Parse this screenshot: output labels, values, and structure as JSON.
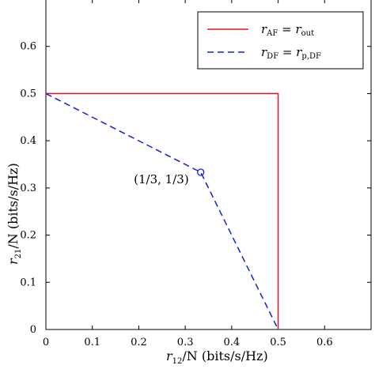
{
  "chart_data": {
    "type": "line",
    "xlabel": {
      "var": "r",
      "sub": "12",
      "rest": "/N (bits/s/Hz)"
    },
    "ylabel": {
      "var": "r",
      "sub": "21",
      "rest": "/N (bits/s/Hz)"
    },
    "xlim": [
      0,
      0.7
    ],
    "ylim": [
      0,
      0.7
    ],
    "x_ticks": [
      "0",
      "0.1",
      "0.2",
      "0.3",
      "0.4",
      "0.5",
      "0.6"
    ],
    "y_ticks": [
      "0",
      "0.1",
      "0.2",
      "0.3",
      "0.4",
      "0.5",
      "0.6"
    ],
    "grid": false,
    "legend_position": "top-right",
    "series": [
      {
        "legend": {
          "lhs": "r",
          "lhs_sub": "AF",
          "rhs": "r",
          "rhs_sub": "out"
        },
        "style": "solid",
        "color": "#e8141b",
        "x": [
          0,
          0.5,
          0.5
        ],
        "y": [
          0.5,
          0.5,
          0
        ]
      },
      {
        "legend": {
          "lhs": "r",
          "lhs_sub": "DF",
          "rhs": "r",
          "rhs_sub": "p,DF"
        },
        "style": "dashed",
        "color": "#1420d6",
        "x": [
          0,
          0.3333,
          0.5
        ],
        "y": [
          0.5,
          0.3333,
          0
        ]
      }
    ],
    "annotations": [
      {
        "text": "(1/3, 1/3)",
        "x": 0.3333,
        "y": 0.3333,
        "marker": "circle"
      }
    ]
  }
}
